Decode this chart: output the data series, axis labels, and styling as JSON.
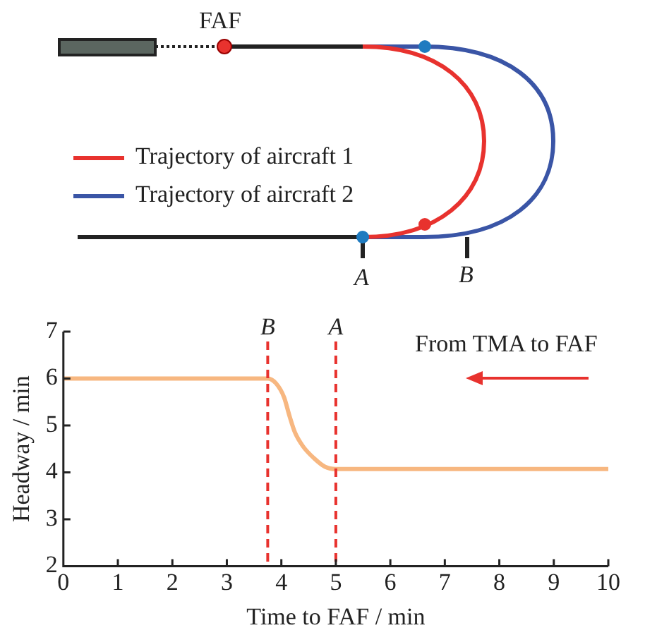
{
  "chart_data": [
    {
      "type": "other",
      "annotations": [
        "FAF",
        "Trajectory of aircraft 1",
        "Trajectory of aircraft 2",
        "A",
        "B"
      ]
    },
    {
      "type": "line",
      "xlabel": "Time to FAF / min",
      "ylabel": "Headway / min",
      "x": [
        0,
        3.75,
        3.9,
        4.05,
        4.15,
        4.25,
        4.4,
        4.6,
        4.8,
        5,
        10
      ],
      "series": [
        {
          "color": "#f7b780",
          "values": [
            6,
            6,
            5.9,
            5.6,
            5.2,
            4.85,
            4.55,
            4.3,
            4.12,
            4.07,
            4.07
          ]
        }
      ],
      "xlim": [
        0,
        10
      ],
      "xticks": [
        0,
        1,
        2,
        3,
        4,
        5,
        6,
        7,
        8,
        9,
        10
      ],
      "ylim": [
        2,
        7
      ],
      "yticks": [
        2,
        3,
        4,
        5,
        6,
        7
      ],
      "grid": false,
      "legend": false,
      "marker": "none",
      "line_style": "solid",
      "ref_lines": [
        {
          "axis": "x",
          "value": 3.75,
          "label": "B",
          "color": "#e8322e",
          "line_style": "dashed"
        },
        {
          "axis": "x",
          "value": 5,
          "label": "A",
          "color": "#e8322e",
          "line_style": "dashed"
        }
      ],
      "annotations": [
        "From TMA to FAF"
      ]
    }
  ]
}
